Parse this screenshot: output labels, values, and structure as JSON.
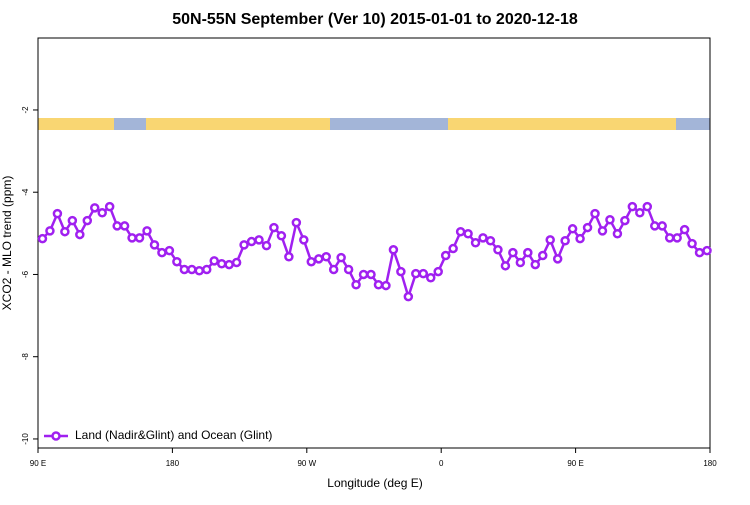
{
  "chart_data": {
    "type": "line",
    "title": "50N-55N September (Ver 10)   2015-01-01 to 2020-12-18",
    "x_label": "Longitude (deg E)",
    "y_label": "XCO2 - MLO trend (ppm)",
    "xlim": [
      90,
      540
    ],
    "xticks": [
      {
        "value": 90,
        "label": "90 E"
      },
      {
        "value": 180,
        "label": "180"
      },
      {
        "value": 270,
        "label": "90 W"
      },
      {
        "value": 360,
        "label": "0"
      },
      {
        "value": 450,
        "label": "90 E"
      },
      {
        "value": 540,
        "label": "180"
      }
    ],
    "ylim": [
      -10.22,
      -0.25
    ],
    "yticks": [
      -2,
      -4,
      -6,
      -8,
      -10
    ],
    "legend": "bottom-left",
    "series": [
      {
        "name": "Land (Nadir&Glint) and Ocean (Glint)",
        "color": "#a020f0",
        "x": [
          93,
          98,
          103,
          108,
          113,
          118,
          123,
          128,
          133,
          138,
          143,
          148,
          153,
          158,
          163,
          168,
          173,
          178,
          183,
          188,
          193,
          198,
          203,
          208,
          213,
          218,
          223,
          228,
          233,
          238,
          243,
          248,
          253,
          258,
          263,
          268,
          273,
          278,
          283,
          288,
          293,
          298,
          303,
          308,
          313,
          318,
          323,
          328,
          333,
          338,
          343,
          348,
          353,
          358,
          363,
          368,
          373,
          378,
          383,
          388,
          393,
          398,
          403,
          408,
          413,
          418,
          423,
          428,
          433,
          438,
          443,
          448,
          453,
          458,
          463,
          468,
          473,
          478,
          483,
          488,
          493,
          498,
          503,
          508,
          513,
          518,
          523,
          528,
          533,
          538
        ],
        "values": [
          -5.13,
          -4.94,
          -4.52,
          -4.96,
          -4.69,
          -5.03,
          -4.69,
          -4.38,
          -4.5,
          -4.35,
          -4.82,
          -4.82,
          -5.11,
          -5.11,
          -4.94,
          -5.28,
          -5.47,
          -5.42,
          -5.69,
          -5.88,
          -5.88,
          -5.91,
          -5.88,
          -5.67,
          -5.74,
          -5.76,
          -5.71,
          -5.28,
          -5.2,
          -5.16,
          -5.3,
          -4.86,
          -5.06,
          -5.57,
          -4.74,
          -5.16,
          -5.69,
          -5.62,
          -5.57,
          -5.88,
          -5.59,
          -5.88,
          -6.25,
          -6.0,
          -6.0,
          -6.25,
          -6.27,
          -5.4,
          -5.93,
          -6.54,
          -5.98,
          -5.98,
          -6.08,
          -5.93,
          -5.54,
          -5.37,
          -4.96,
          -5.01,
          -5.23,
          -5.11,
          -5.18,
          -5.4,
          -5.79,
          -5.47,
          -5.71,
          -5.47,
          -5.76,
          -5.54,
          -5.16,
          -5.62,
          -5.18,
          -4.89,
          -5.13,
          -4.86,
          -4.52,
          -4.94,
          -4.67,
          -5.01,
          -4.69,
          -4.35,
          -4.5,
          -4.35,
          -4.82,
          -4.82,
          -5.11,
          -5.11,
          -4.91,
          -5.25,
          -5.47,
          -5.42
        ]
      }
    ]
  }
}
